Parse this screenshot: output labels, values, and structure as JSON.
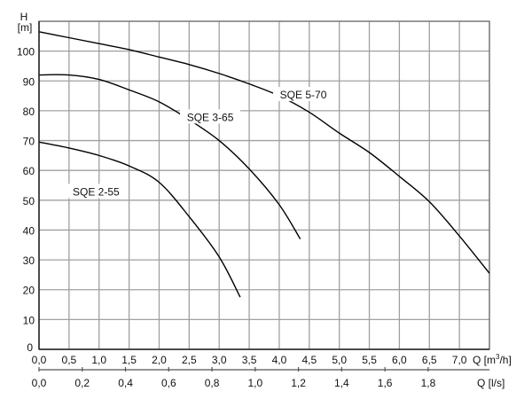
{
  "chart_data": {
    "type": "line",
    "ylabel": "H",
    "ylabel_unit": "[m]",
    "xlabel": "Q [m³/h]",
    "xlabel_secondary": "Q [l/s]",
    "xlim": [
      0,
      7.5
    ],
    "ylim": [
      0,
      110
    ],
    "x_ticks": [
      0,
      0.5,
      1.0,
      1.5,
      2.0,
      2.5,
      3.0,
      3.5,
      4.0,
      4.5,
      5.0,
      5.5,
      6.0,
      6.5,
      7.0
    ],
    "x_tick_labels": [
      "0,0",
      "0,5",
      "1,0",
      "1,5",
      "2,0",
      "2,5",
      "3,0",
      "3,5",
      "4,0",
      "4,5",
      "5,0",
      "5,5",
      "6,0",
      "6,5",
      "7,0"
    ],
    "y_ticks": [
      0,
      10,
      20,
      30,
      40,
      50,
      60,
      70,
      80,
      90,
      100
    ],
    "x2_ticks_ls": [
      0,
      0.2,
      0.4,
      0.6,
      0.8,
      1.0,
      1.2,
      1.4,
      1.6,
      1.8
    ],
    "x2_tick_labels": [
      "0,0",
      "0,2",
      "0,4",
      "0,6",
      "0,8",
      "1,0",
      "1,2",
      "1,4",
      "1,6",
      "1,8"
    ],
    "grid": true,
    "series": [
      {
        "name": "SQE 5-70",
        "x": [
          0,
          0.5,
          1.0,
          1.5,
          2.0,
          2.5,
          3.0,
          3.5,
          4.0,
          4.5,
          5.0,
          5.5,
          6.0,
          6.5,
          7.0,
          7.5
        ],
        "y": [
          106.5,
          104.5,
          102.5,
          100.5,
          98,
          95.5,
          92.5,
          89,
          85,
          79.5,
          72.5,
          66,
          58,
          49.5,
          38,
          25.5
        ]
      },
      {
        "name": "SQE 3-65",
        "x": [
          0,
          0.5,
          1.0,
          1.5,
          2.0,
          2.5,
          3.0,
          3.5,
          4.0,
          4.35
        ],
        "y": [
          92,
          92,
          90.5,
          87,
          83,
          77,
          70,
          60.5,
          48.5,
          37
        ]
      },
      {
        "name": "SQE 2-55",
        "x": [
          0,
          0.5,
          1.0,
          1.5,
          2.0,
          2.5,
          3.0,
          3.35
        ],
        "y": [
          69.5,
          67.5,
          65,
          61.5,
          56,
          44.5,
          31,
          17.5
        ]
      }
    ],
    "labels": [
      {
        "series": "SQE 5-70",
        "at_x": 4.4,
        "at_y": 85
      },
      {
        "series": "SQE 3-65",
        "at_x": 2.85,
        "at_y": 77.5
      },
      {
        "series": "SQE 2-55",
        "at_x": 0.95,
        "at_y": 52.5
      }
    ],
    "colors": {
      "curve": "#000000",
      "grid": "#a0a0a0"
    }
  }
}
